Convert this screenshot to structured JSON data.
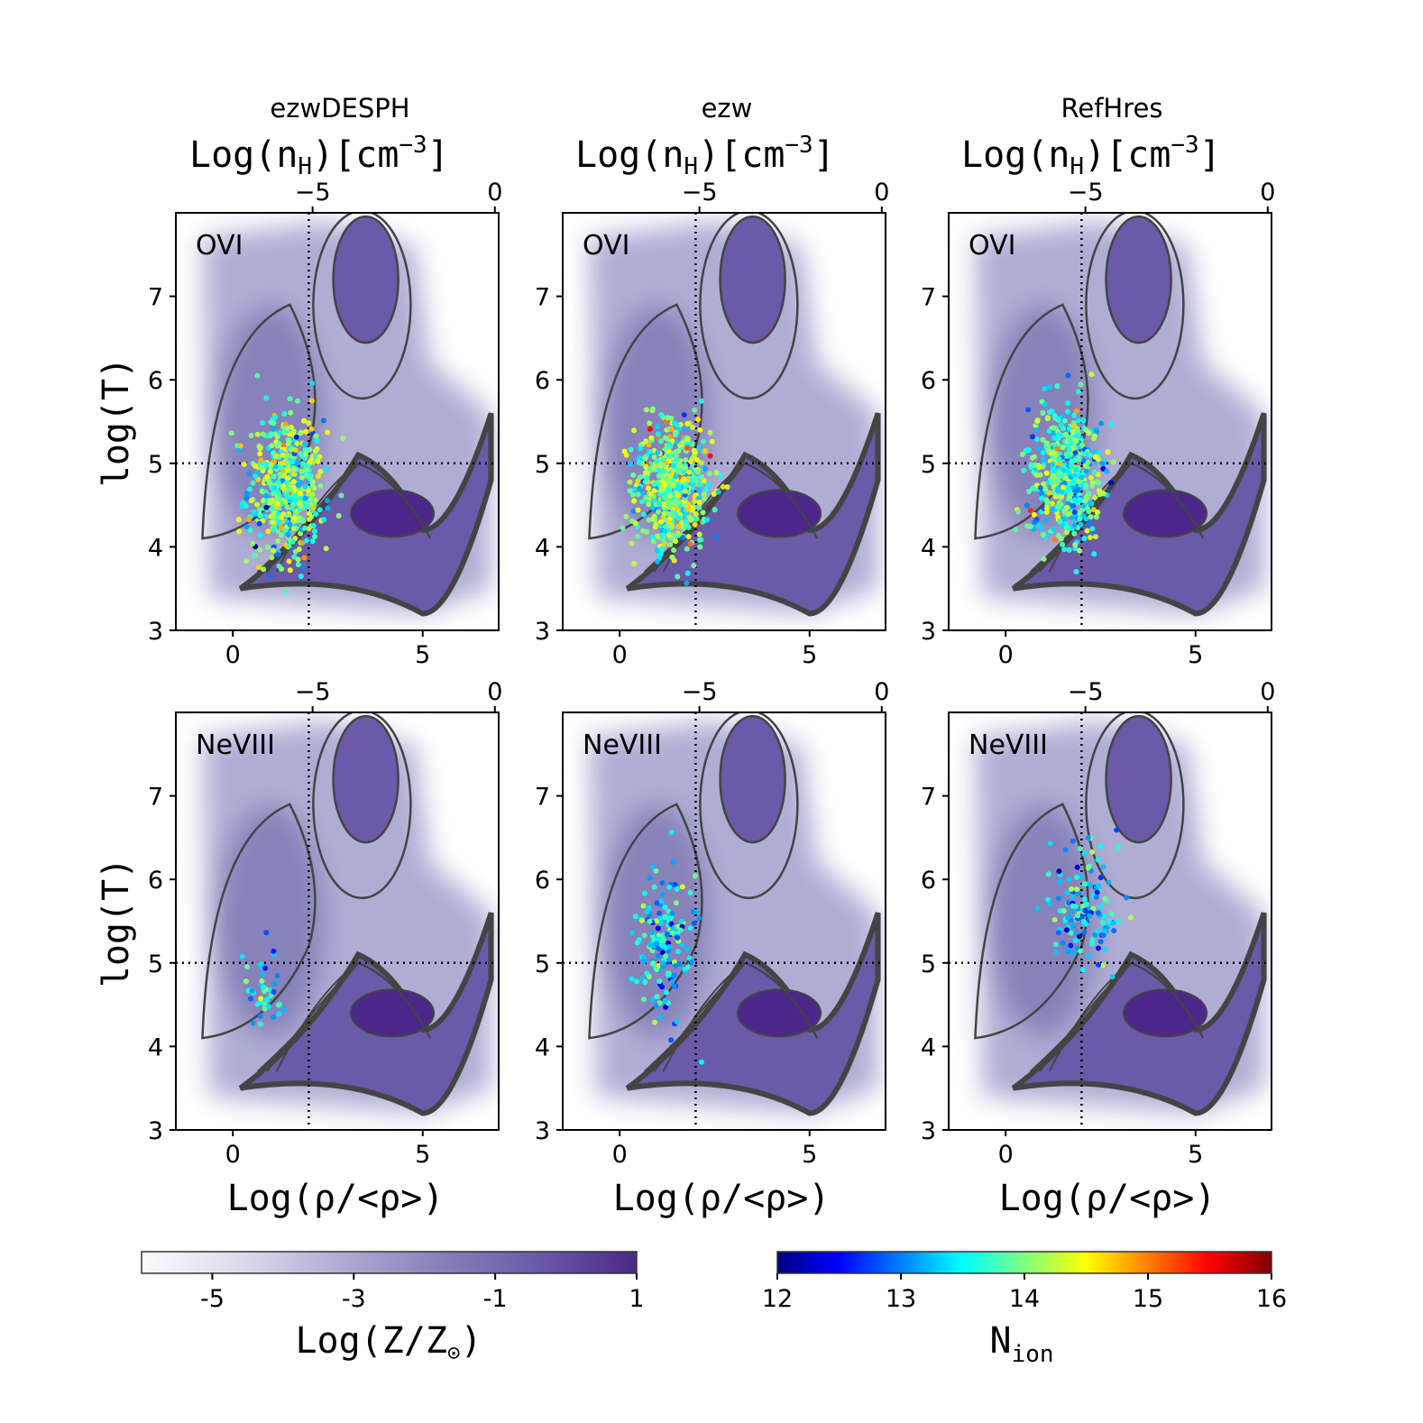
{
  "chart_data": {
    "type": "scatter",
    "columns": [
      "ezwDESPH",
      "ezw",
      "RefHres"
    ],
    "rows": [
      "OVI",
      "NeVIII"
    ],
    "xlabel": "Log(ρ/<ρ>)",
    "ylabel": "log(T)",
    "top_axis_label_main": "Log(n",
    "top_axis_label_sub": "H",
    "top_axis_label_unit": ")[cm",
    "top_axis_label_exp": "−3",
    "top_axis_label_close": "]",
    "xlim": [
      -1.5,
      7.0
    ],
    "ylim": [
      3.0,
      8.0
    ],
    "xticks": [
      {
        "v": 0,
        "label": "0"
      },
      {
        "v": 5,
        "label": "5"
      }
    ],
    "yticks": [
      {
        "v": 3,
        "label": "3"
      },
      {
        "v": 4,
        "label": "4"
      },
      {
        "v": 5,
        "label": "5"
      },
      {
        "v": 6,
        "label": "6"
      },
      {
        "v": 7,
        "label": "7"
      }
    ],
    "top_ticks": [
      {
        "v": 2.1,
        "label": "−5"
      },
      {
        "v": 6.9,
        "label": "0"
      }
    ],
    "reference_lines": {
      "log_T": 5.0,
      "log_rho": 2.0
    },
    "colorbar_metallicity": {
      "label_main": "Log(Z/Z",
      "label_sub": "⊙",
      "label_close": ")",
      "range": [
        -6,
        1
      ],
      "ticks": [
        {
          "v": -5,
          "label": "-5"
        },
        {
          "v": -3,
          "label": "-3"
        },
        {
          "v": -1,
          "label": "-1"
        },
        {
          "v": 1,
          "label": "1"
        }
      ],
      "colors": [
        "#fbfbfd",
        "#dcdbeb",
        "#b0add4",
        "#8782ba",
        "#6a5aa8",
        "#4b2889"
      ]
    },
    "colorbar_nion": {
      "label_main": "N",
      "label_sub": "ion",
      "range": [
        12,
        16
      ],
      "ticks": [
        {
          "v": 12,
          "label": "12"
        },
        {
          "v": 13,
          "label": "13"
        },
        {
          "v": 14,
          "label": "14"
        },
        {
          "v": 15,
          "label": "15"
        },
        {
          "v": 16,
          "label": "16"
        }
      ],
      "colors": [
        "#00007f",
        "#0000ff",
        "#007fff",
        "#00ffff",
        "#7fff7f",
        "#ffff00",
        "#ff7f00",
        "#ff0000",
        "#7f0000"
      ]
    },
    "panels": [
      {
        "col": 0,
        "row": 0,
        "sim": "ezwDESPH",
        "ion": "OVI",
        "scatter_center": [
          1.4,
          4.7
        ],
        "scatter_spread": [
          0.5,
          0.45
        ],
        "n_points": 520,
        "mean_nion": 13.9
      },
      {
        "col": 1,
        "row": 0,
        "sim": "ezw",
        "ion": "OVI",
        "scatter_center": [
          1.4,
          4.75
        ],
        "scatter_spread": [
          0.5,
          0.4
        ],
        "n_points": 560,
        "mean_nion": 14.0
      },
      {
        "col": 2,
        "row": 0,
        "sim": "RefHres",
        "ion": "OVI",
        "scatter_center": [
          1.6,
          4.9
        ],
        "scatter_spread": [
          0.5,
          0.4
        ],
        "n_points": 500,
        "mean_nion": 13.7
      },
      {
        "col": 0,
        "row": 1,
        "sim": "ezwDESPH",
        "ion": "NeVIII",
        "scatter_center": [
          0.9,
          4.6
        ],
        "scatter_spread": [
          0.3,
          0.3
        ],
        "n_points": 40,
        "mean_nion": 13.4
      },
      {
        "col": 1,
        "row": 1,
        "sim": "ezw",
        "ion": "NeVIII",
        "scatter_center": [
          1.2,
          5.2
        ],
        "scatter_spread": [
          0.4,
          0.45
        ],
        "n_points": 160,
        "mean_nion": 13.4
      },
      {
        "col": 2,
        "row": 1,
        "sim": "RefHres",
        "ion": "NeVIII",
        "scatter_center": [
          2.1,
          5.6
        ],
        "scatter_spread": [
          0.45,
          0.35
        ],
        "n_points": 140,
        "mean_nion": 13.3
      }
    ]
  }
}
